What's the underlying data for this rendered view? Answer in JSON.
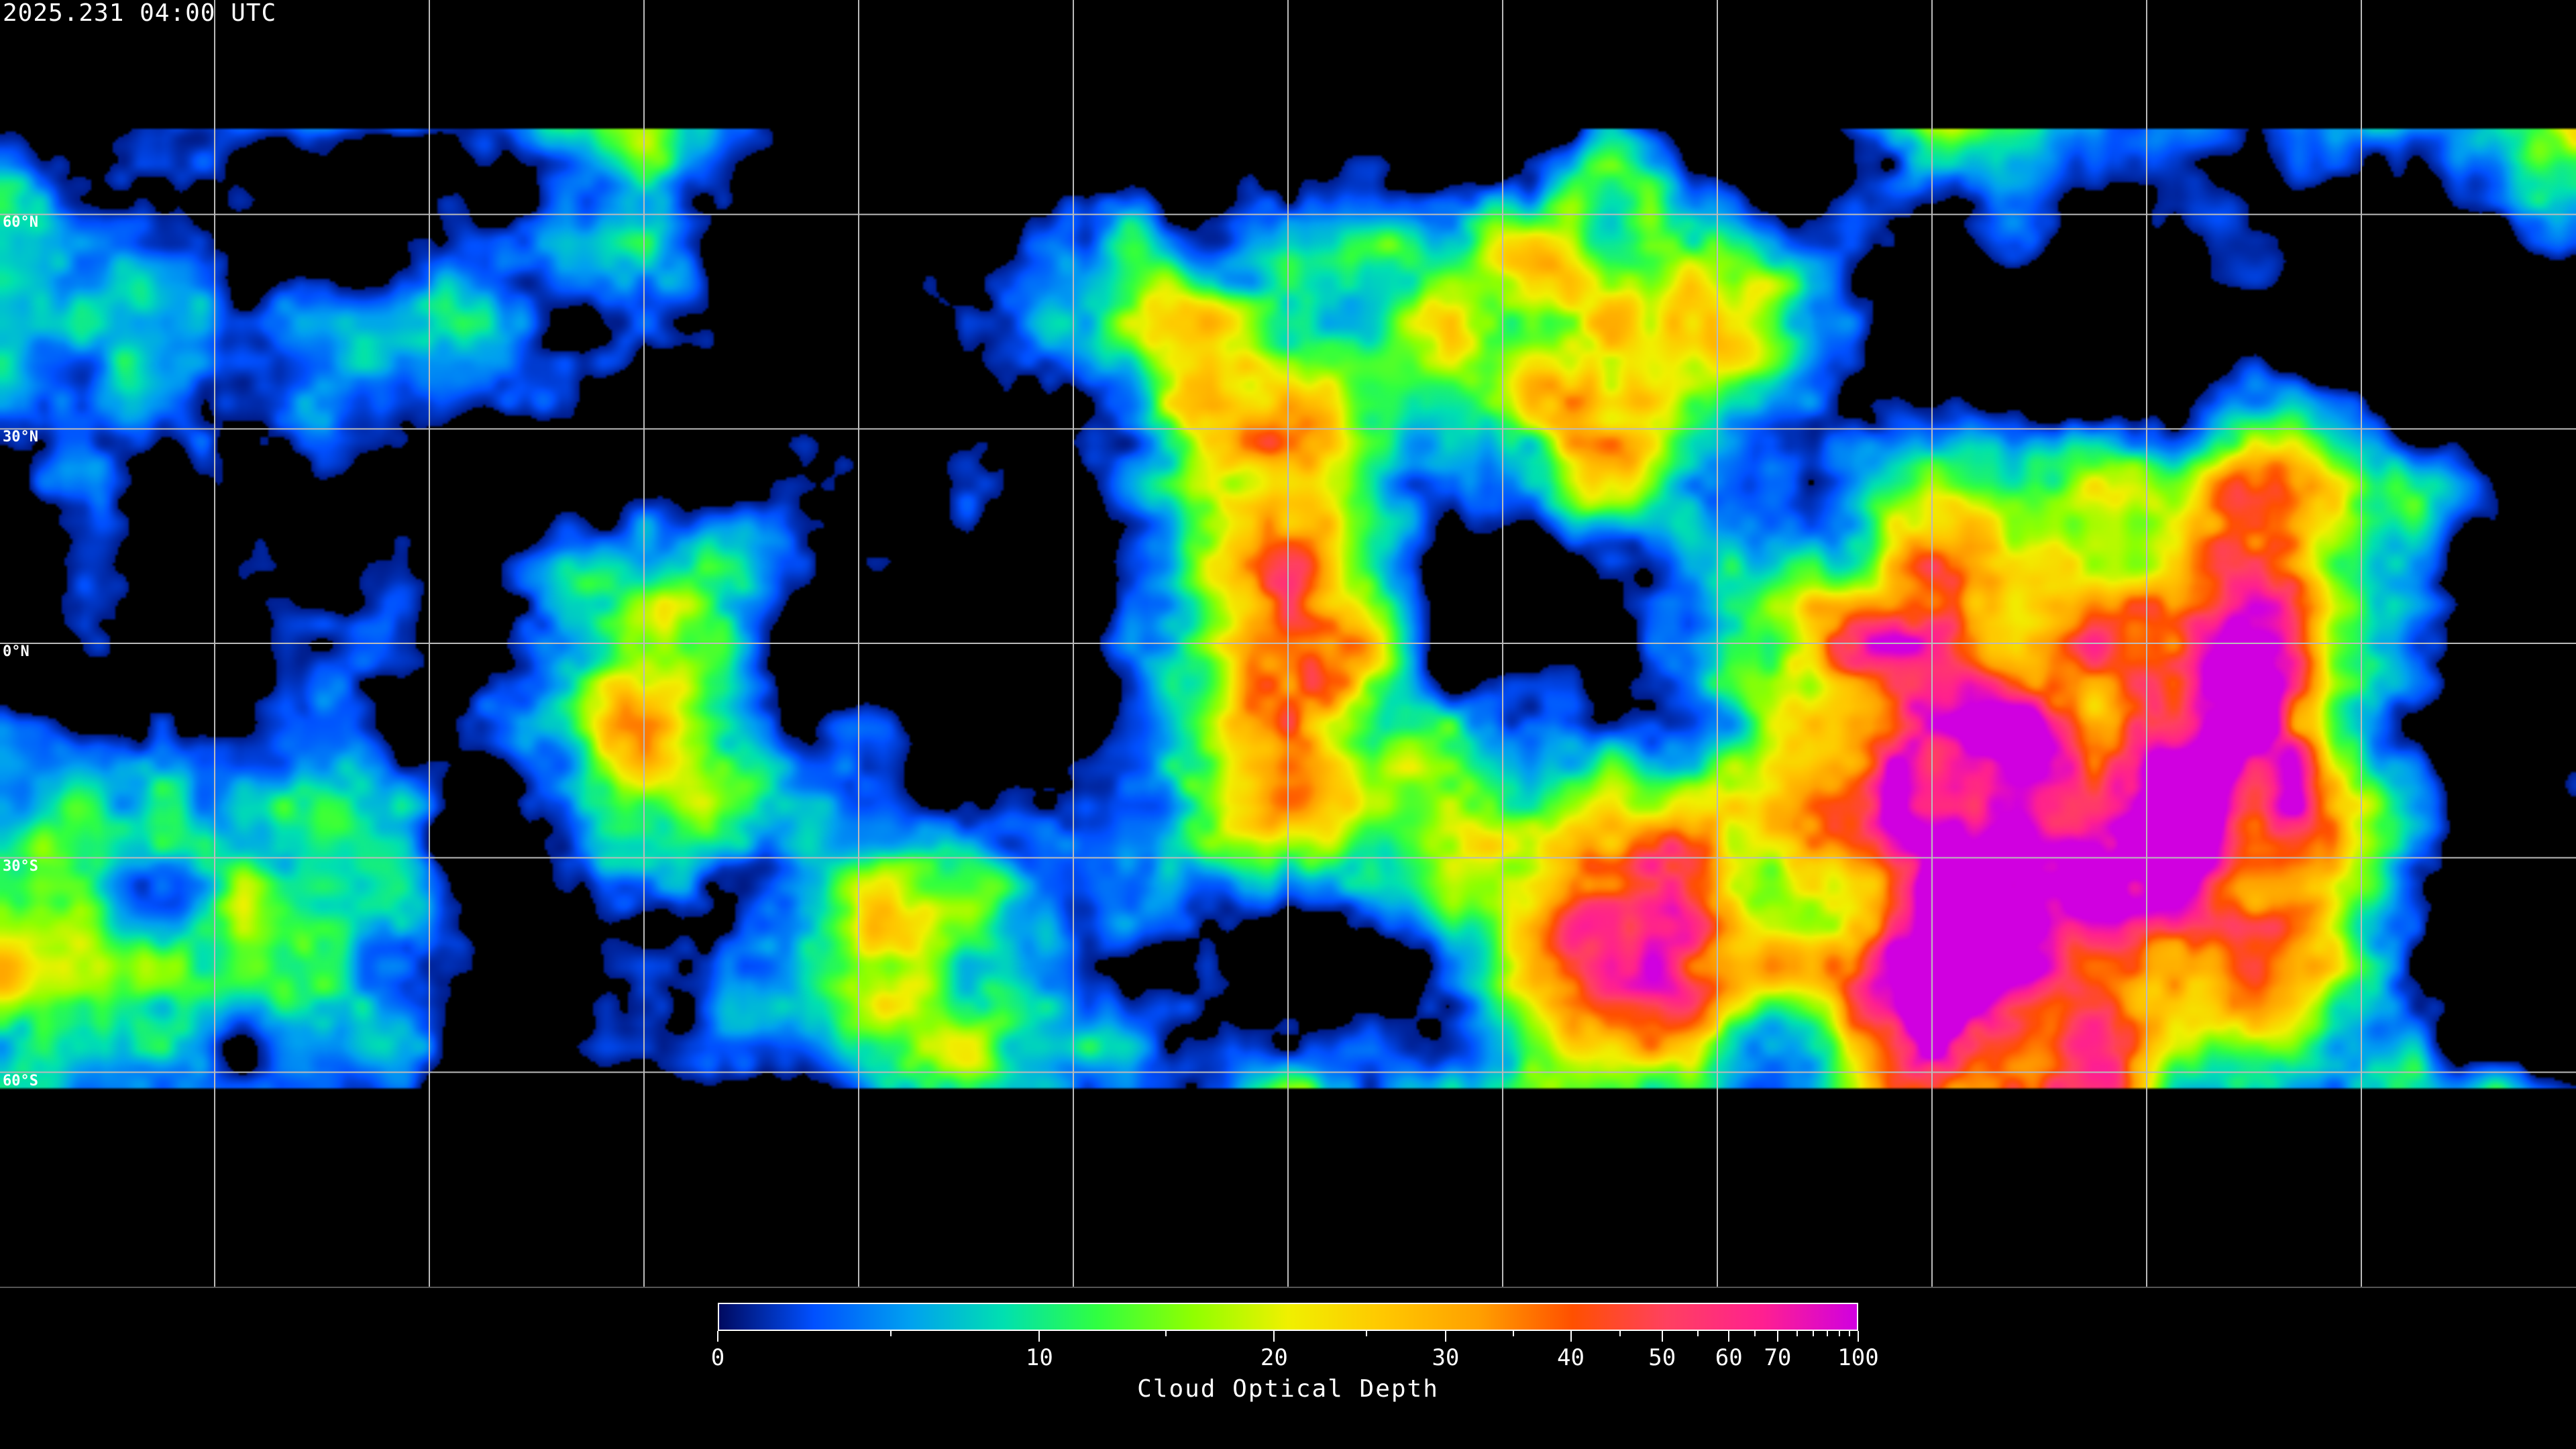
{
  "header": {
    "timestamp": "2025.231 04:00 UTC"
  },
  "map": {
    "projection": "equirectangular",
    "gridlines": {
      "longitude_step_deg": 30,
      "latitude_step_deg": 30,
      "color": "#ffffff"
    },
    "lat_labels": [
      "60°N",
      "30°N",
      "0°N",
      "30°S",
      "60°S"
    ],
    "lat_values": [
      60,
      30,
      0,
      -30,
      -60
    ],
    "coastline_color": "#ffffff",
    "background": "#000000"
  },
  "colorbar": {
    "label": "Cloud Optical Depth",
    "range": [
      0,
      100
    ],
    "major_ticks": [
      0,
      10,
      20,
      30,
      40,
      50,
      60,
      70,
      100
    ],
    "major_tick_labels": [
      "0",
      "10",
      "20",
      "30",
      "40",
      "50",
      "60",
      "70",
      "100"
    ],
    "minor_ticks": [
      5,
      15,
      25,
      35,
      45,
      55,
      65,
      75,
      80,
      85,
      90,
      95
    ],
    "colors": [
      "#000a60",
      "#0050ff",
      "#00a0f0",
      "#00e0b0",
      "#30ff40",
      "#90ff00",
      "#f0f000",
      "#ffc800",
      "#ffa000",
      "#ff5000",
      "#ff4060",
      "#ff2090",
      "#d000e0"
    ]
  }
}
